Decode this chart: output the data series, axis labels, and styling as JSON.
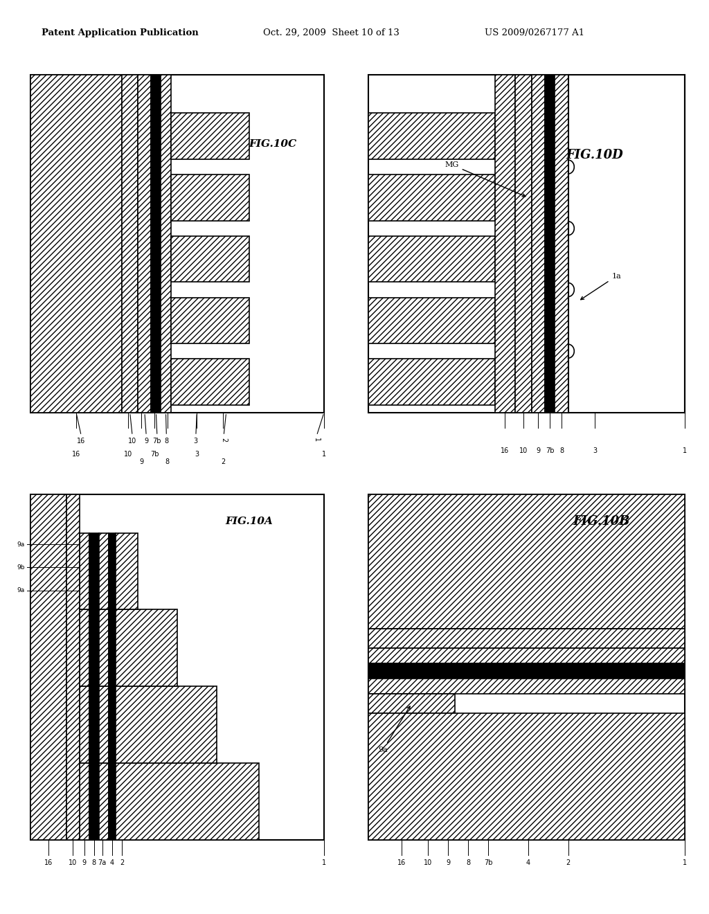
{
  "title_left": "Patent Application Publication",
  "title_mid": "Oct. 29, 2009  Sheet 10 of 13",
  "title_right": "US 2009/0267177 A1",
  "background": "#ffffff"
}
